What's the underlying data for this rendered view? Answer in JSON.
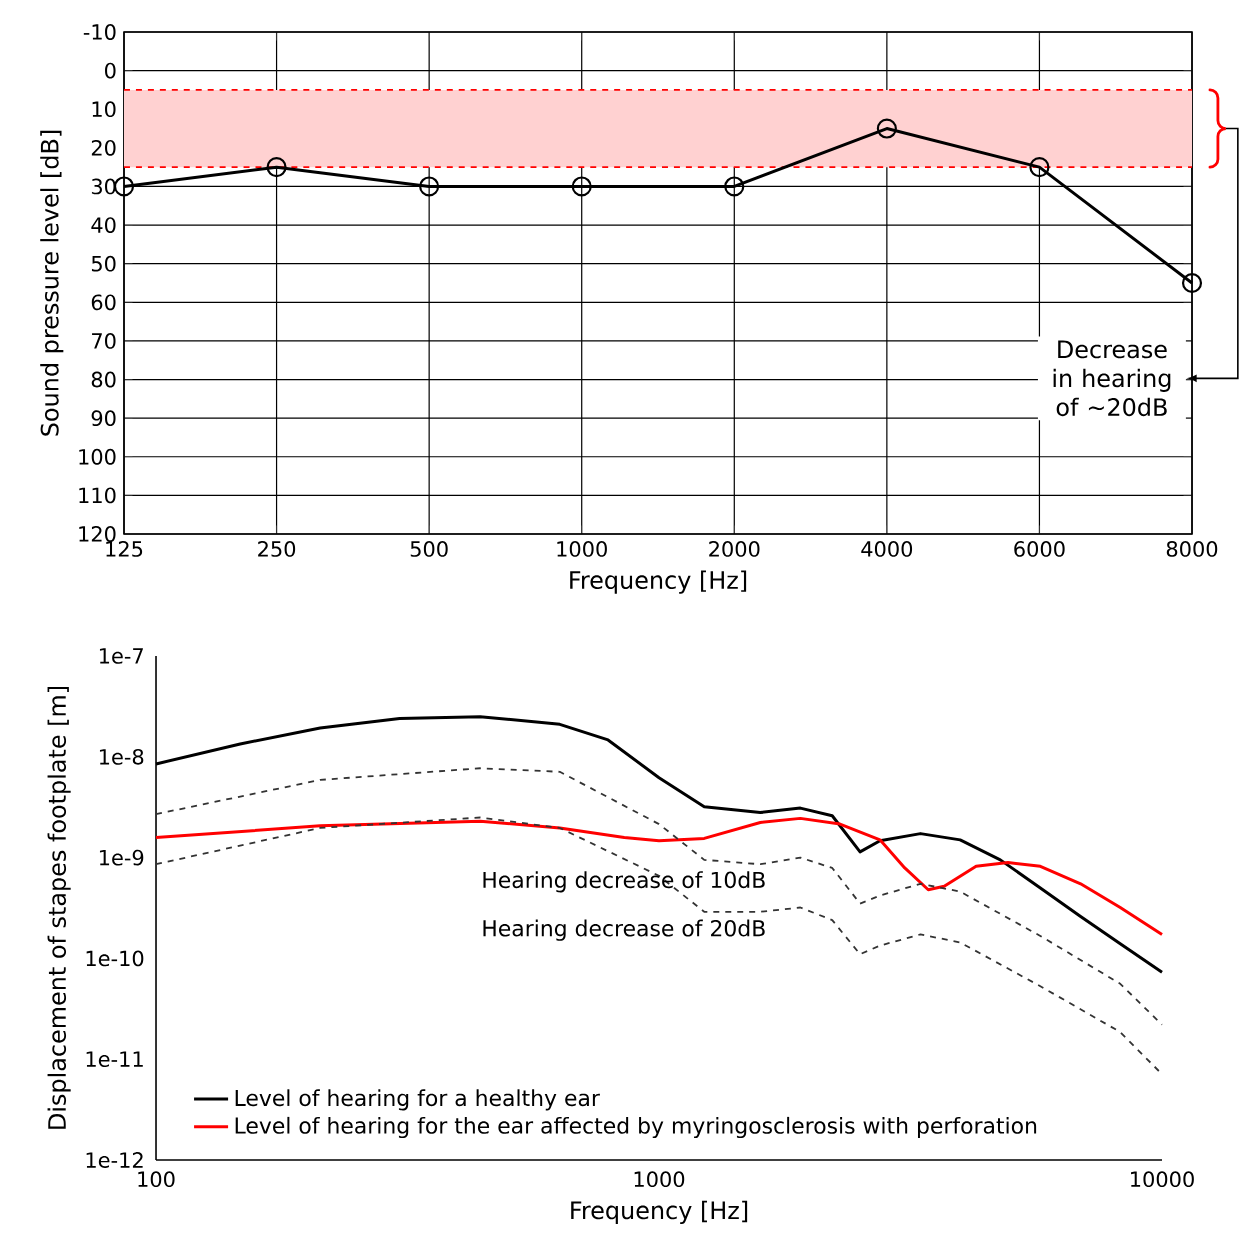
{
  "chart_data": [
    {
      "type": "line",
      "xlabel": "Frequency [Hz]",
      "ylabel": "Sound pressure level [dB]",
      "categories": [
        "125",
        "250",
        "500",
        "1000",
        "2000",
        "4000",
        "6000",
        "8000"
      ],
      "values": [
        30,
        25,
        30,
        30,
        30,
        15,
        25,
        55
      ],
      "color": "#000000",
      "marker": "circle",
      "ylim": [
        120,
        -10
      ],
      "yticks": [
        -10,
        0,
        10,
        20,
        30,
        40,
        50,
        60,
        70,
        80,
        90,
        100,
        110,
        120
      ],
      "grid": true,
      "bands": [
        {
          "axis": "y",
          "from": 5,
          "to": 25,
          "color": "#ffd1d1"
        }
      ],
      "ref_lines": [
        {
          "axis": "y",
          "value": 5,
          "color": "#ff0000",
          "line_style": "dashed"
        },
        {
          "axis": "y",
          "value": 25,
          "color": "#ff0000",
          "line_style": "dashed"
        }
      ],
      "annotations": [
        "Decrease in hearing of ~20dB"
      ]
    },
    {
      "type": "line",
      "xlabel": "Frequency [Hz]",
      "ylabel": "Displacement of stapes footplate [m]",
      "log": "xy",
      "xlim": [
        100,
        10000
      ],
      "xticks": [
        100,
        1000,
        10000
      ],
      "ylim": [
        1e-12,
        1e-07
      ],
      "yticks": [
        {
          "value": 1e-12,
          "label": "1e-12"
        },
        {
          "value": 1e-11,
          "label": "1e-11"
        },
        {
          "value": 1e-10,
          "label": "1e-10"
        },
        {
          "value": 1e-09,
          "label": "1e-9"
        },
        {
          "value": 1e-08,
          "label": "1e-8"
        },
        {
          "value": 1e-07,
          "label": "1e-7"
        }
      ],
      "legend": "bottom left",
      "series": [
        {
          "name": "Level of hearing for a healthy ear",
          "color": "#000000",
          "x": [
            100,
            147,
            212,
            305,
            441,
            635,
            792,
            1000,
            1230,
            1590,
            1910,
            2210,
            2510,
            2750,
            3310,
            3970,
            4770,
            5730,
            6890,
            8260,
            10000
          ],
          "values": [
            8.5e-09,
            1.34e-08,
            1.93e-08,
            2.4e-08,
            2.5e-08,
            2.1e-08,
            1.47e-08,
            6.2e-09,
            3.2e-09,
            2.8e-09,
            3.1e-09,
            2.6e-09,
            1.14e-09,
            1.47e-09,
            1.73e-09,
            1.5e-09,
            9.5e-10,
            5e-10,
            2.6e-10,
            1.4e-10,
            7.3e-11
          ]
        },
        {
          "name": "Level of hearing for the ear affected by myringosclerosis with perforation",
          "color": "#ff0000",
          "x": [
            100,
            212,
            441,
            635,
            853,
            1000,
            1230,
            1590,
            1910,
            2290,
            2750,
            3080,
            3430,
            3690,
            4270,
            4940,
            5730,
            6890,
            8260,
            10000
          ],
          "values": [
            1.58e-09,
            2.07e-09,
            2.3e-09,
            1.97e-09,
            1.58e-09,
            1.47e-09,
            1.55e-09,
            2.23e-09,
            2.45e-09,
            2.15e-09,
            1.5e-09,
            7.9e-10,
            4.8e-10,
            5.2e-10,
            8.2e-10,
            8.95e-10,
            8.2e-10,
            5.5e-10,
            3.2e-10,
            1.73e-10
          ]
        },
        {
          "color": "#333333",
          "line_style": "dashed",
          "x": [
            100,
            212,
            441,
            635,
            1000,
            1230,
            1590,
            1910,
            2210,
            2510,
            2750,
            3310,
            3970,
            5730,
            8260,
            10000
          ],
          "values": [
            2.7e-09,
            5.9e-09,
            7.7e-09,
            7.1e-09,
            2.15e-09,
            9.5e-10,
            8.6e-10,
            1e-09,
            7.9e-10,
            3.5e-10,
            4.2e-10,
            5.5e-10,
            4.6e-10,
            1.67e-10,
            5.6e-11,
            2.2e-11
          ]
        },
        {
          "color": "#333333",
          "line_style": "dashed",
          "x": [
            100,
            212,
            441,
            635,
            1000,
            1230,
            1590,
            1910,
            2210,
            2510,
            2750,
            3310,
            3970,
            5730,
            8260,
            10000
          ],
          "values": [
            8.6e-10,
            1.97e-09,
            2.5e-09,
            1.97e-09,
            6.6e-10,
            2.9e-10,
            2.9e-10,
            3.2e-10,
            2.4e-10,
            1.1e-10,
            1.34e-10,
            1.73e-10,
            1.44e-10,
            5.3e-11,
            1.86e-11,
            7.1e-12
          ]
        }
      ],
      "annotations": [
        "Hearing decrease of 10dB",
        "Hearing decrease of 20dB"
      ]
    }
  ]
}
